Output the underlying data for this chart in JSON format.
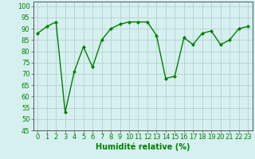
{
  "x": [
    0,
    1,
    2,
    3,
    4,
    5,
    6,
    7,
    8,
    9,
    10,
    11,
    12,
    13,
    14,
    15,
    16,
    17,
    18,
    19,
    20,
    21,
    22,
    23
  ],
  "y": [
    88,
    91,
    93,
    53,
    71,
    82,
    73,
    85,
    90,
    92,
    93,
    93,
    93,
    87,
    68,
    69,
    86,
    83,
    88,
    89,
    83,
    85,
    90,
    91
  ],
  "line_color": "#008000",
  "marker": "D",
  "marker_size": 2.0,
  "bg_color": "#d6f0f0",
  "grid_color": "#b0c8c8",
  "xlabel": "Humidité relative (%)",
  "xlabel_color": "#008000",
  "xlabel_fontsize": 7,
  "yticks": [
    45,
    50,
    55,
    60,
    65,
    70,
    75,
    80,
    85,
    90,
    95,
    100
  ],
  "xtick_labels": [
    "0",
    "1",
    "2",
    "3",
    "4",
    "5",
    "6",
    "7",
    "8",
    "9",
    "10",
    "11",
    "12",
    "13",
    "14",
    "15",
    "16",
    "17",
    "18",
    "19",
    "20",
    "21",
    "22",
    "23"
  ],
  "ylim": [
    45,
    102
  ],
  "xlim": [
    -0.5,
    23.5
  ],
  "tick_fontsize": 6.0,
  "linewidth": 1.0
}
